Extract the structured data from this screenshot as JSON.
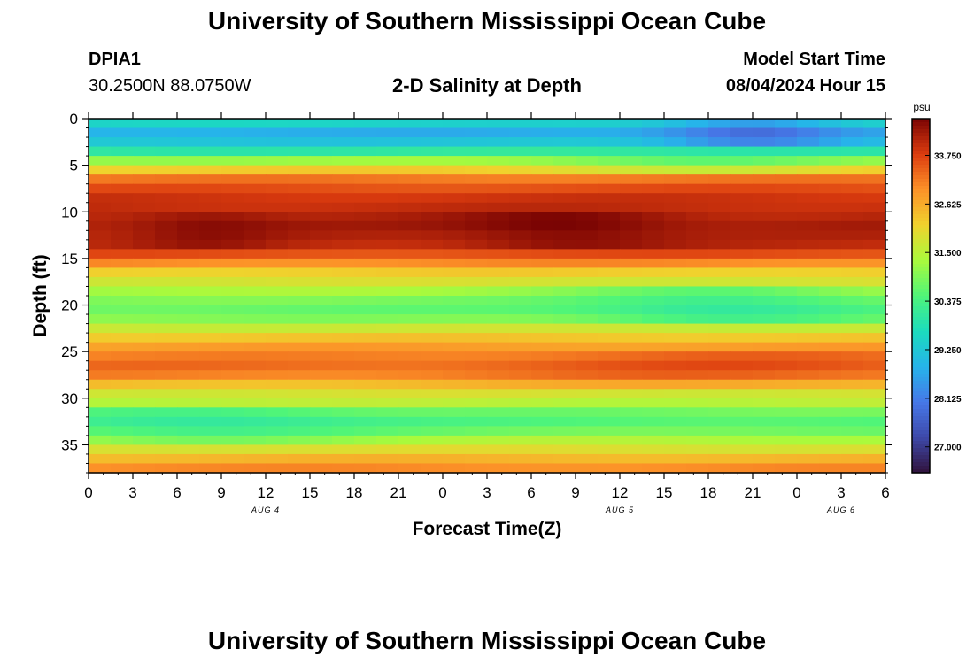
{
  "header": {
    "title": "University of Southern Mississippi Ocean Cube",
    "station_id": "DPIA1",
    "coordinates": "30.2500N  88.0750W",
    "plot_title": "2-D Salinity at Depth",
    "model_start_label": "Model Start Time",
    "model_start_value": "08/04/2024 Hour 15"
  },
  "footer": {
    "title": "University of Southern Mississippi Ocean Cube"
  },
  "chart_data": {
    "type": "heatmap",
    "title": "2-D Salinity at Depth",
    "xlabel": "Forecast Time(Z)",
    "ylabel": "Depth (ft)",
    "x_ticks": [
      "0",
      "3",
      "6",
      "9",
      "12",
      "15",
      "18",
      "21",
      "0",
      "3",
      "6",
      "9",
      "12",
      "15",
      "18",
      "21",
      "0",
      "3",
      "6"
    ],
    "x_range_hours": [
      0,
      54
    ],
    "date_labels": [
      {
        "label": "AUG 4",
        "hour": 12
      },
      {
        "label": "AUG 5",
        "hour": 36
      },
      {
        "label": "AUG 6",
        "hour": 51
      }
    ],
    "y_ticks": [
      "0",
      "5",
      "10",
      "15",
      "20",
      "25",
      "30",
      "35"
    ],
    "y_range": [
      0,
      38
    ],
    "depth_step_ft": 1,
    "colorbar": {
      "unit": "psu",
      "ticks": [
        "33.750",
        "32.625",
        "31.500",
        "30.375",
        "29.250",
        "28.125",
        "27.000"
      ],
      "range": [
        26.4,
        34.6
      ]
    },
    "base_profile_psu": [
      29.5,
      28.8,
      29.2,
      30.0,
      31.2,
      32.2,
      33.2,
      33.6,
      33.9,
      34.0,
      34.1,
      34.2,
      34.1,
      34.0,
      33.6,
      33.0,
      32.2,
      31.8,
      31.3,
      30.9,
      30.7,
      31.0,
      31.7,
      32.3,
      32.8,
      33.1,
      33.3,
      33.1,
      32.4,
      31.8,
      31.5,
      30.8,
      30.5,
      30.8,
      31.4,
      31.9,
      32.5,
      33.0
    ],
    "features": [
      {
        "depth_ft": [
          0,
          2
        ],
        "hours": [
          42,
          48
        ],
        "delta_psu": -1.0
      },
      {
        "depth_ft": [
          10,
          13
        ],
        "hours": [
          6,
          10
        ],
        "delta_psu": 0.3
      },
      {
        "depth_ft": [
          10,
          13
        ],
        "hours": [
          28,
          37
        ],
        "delta_psu": 0.45
      },
      {
        "depth_ft": [
          18,
          21
        ],
        "hours": [
          36,
          50
        ],
        "delta_psu": -0.7
      },
      {
        "depth_ft": [
          4,
          5
        ],
        "hours": [
          36,
          48
        ],
        "delta_psu": -0.5
      },
      {
        "depth_ft": [
          31,
          34
        ],
        "hours": [
          0,
          15
        ],
        "delta_psu": -0.5
      },
      {
        "depth_ft": [
          25,
          28
        ],
        "hours": [
          32,
          54
        ],
        "delta_psu": 0.3
      }
    ]
  }
}
